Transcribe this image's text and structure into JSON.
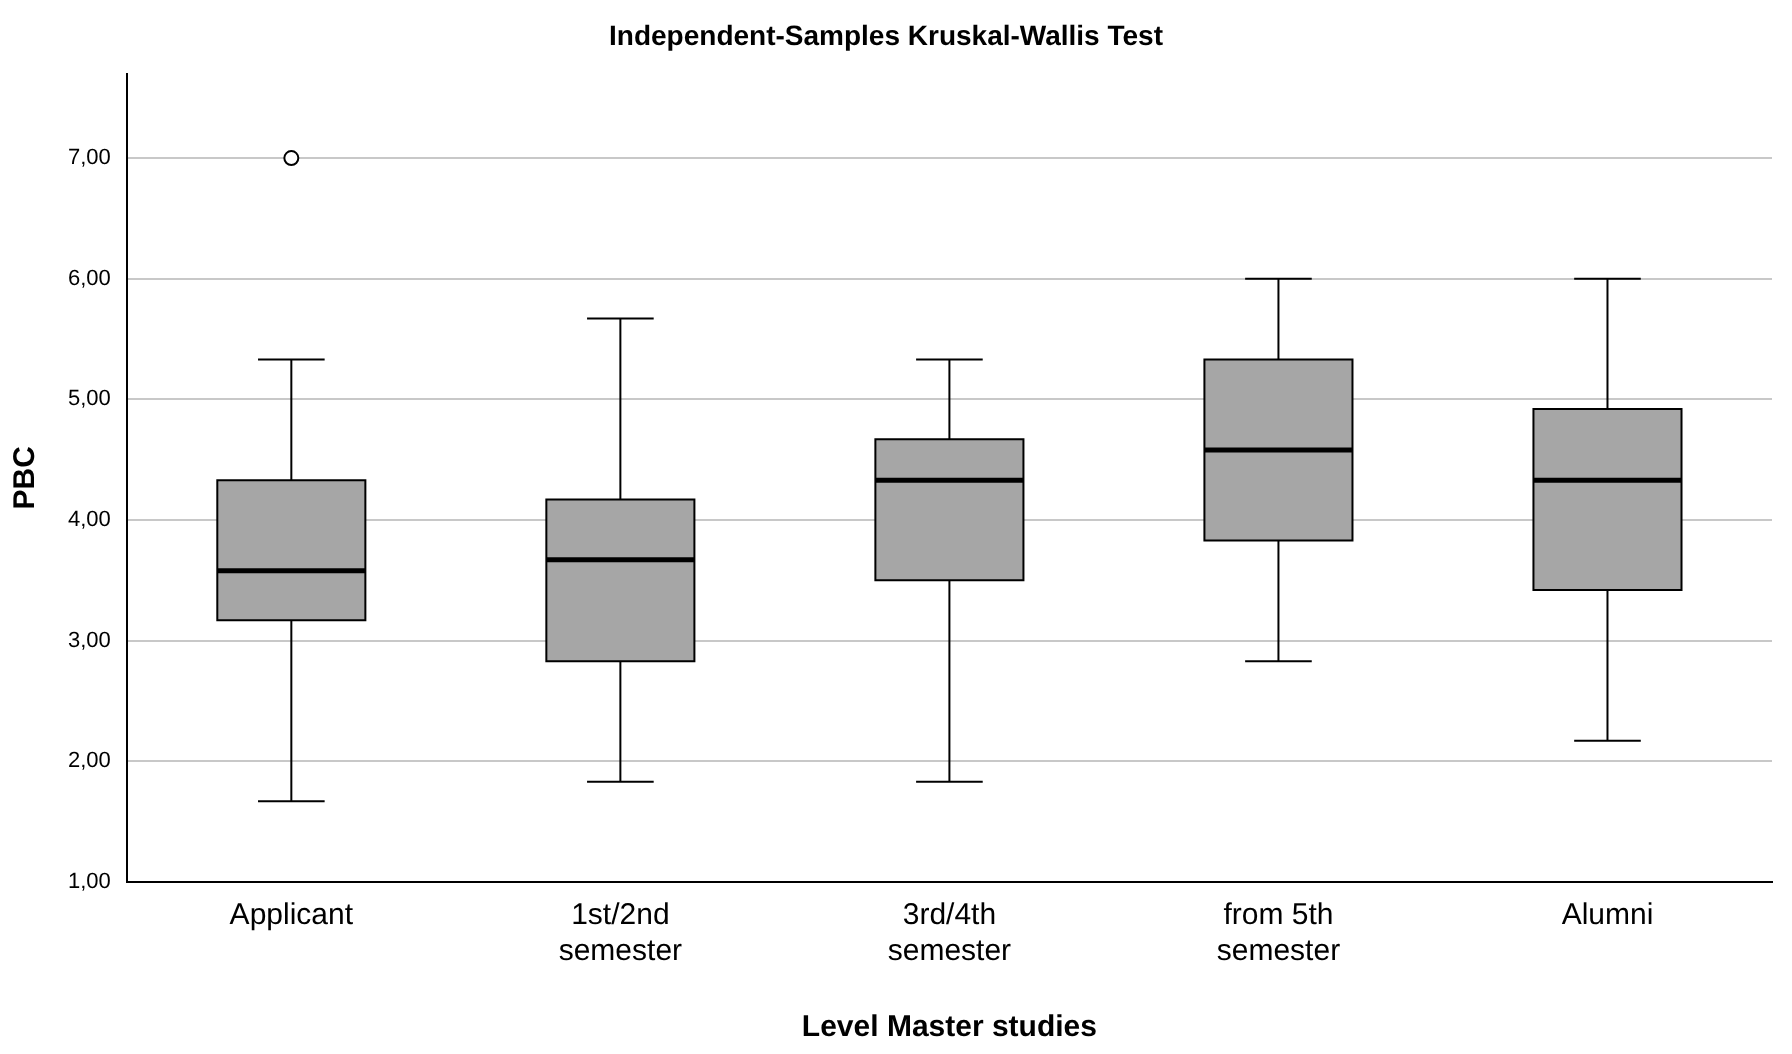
{
  "chart_data": {
    "type": "box",
    "title": "Independent-Samples Kruskal-Wallis Test",
    "xlabel": "Level Master studies",
    "ylabel": "PBC",
    "categories": [
      "Applicant",
      "1st/2nd semester",
      "3rd/4th semester",
      "from 5th semester",
      "Alumni"
    ],
    "color": "#a6a6a6",
    "boxes": [
      {
        "low": 1.67,
        "q1": 3.17,
        "median": 3.58,
        "q3": 4.33,
        "high": 5.33,
        "outliers": [
          7.0
        ]
      },
      {
        "low": 1.83,
        "q1": 2.83,
        "median": 3.67,
        "q3": 4.17,
        "high": 5.67
      },
      {
        "low": 1.83,
        "q1": 3.5,
        "median": 4.33,
        "q3": 4.67,
        "high": 5.33
      },
      {
        "low": 2.83,
        "q1": 3.83,
        "median": 4.58,
        "q3": 5.33,
        "high": 6.0
      },
      {
        "low": 2.17,
        "q1": 3.42,
        "median": 4.33,
        "q3": 4.92,
        "high": 6.0
      }
    ],
    "ylim": [
      1,
      7.7
    ],
    "yticks": [
      {
        "value": 1,
        "label": "1,00"
      },
      {
        "value": 2,
        "label": "2,00"
      },
      {
        "value": 3,
        "label": "3,00"
      },
      {
        "value": 4,
        "label": "4,00"
      },
      {
        "value": 5,
        "label": "5,00"
      },
      {
        "value": 6,
        "label": "6,00"
      },
      {
        "value": 7,
        "label": "7,00"
      }
    ],
    "grid": "y",
    "legend": false
  }
}
